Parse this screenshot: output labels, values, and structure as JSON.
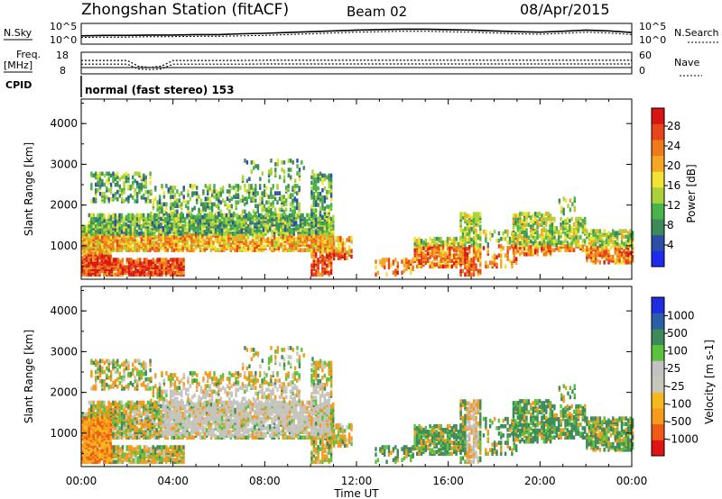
{
  "header": {
    "station": "Zhongshan Station (fitACF)",
    "beam": "Beam 02",
    "date": "08/Apr/2015",
    "cpid": "CPID",
    "mode": "normal (fast stereo) 153"
  },
  "time_axis": {
    "ticks": [
      "00:00",
      "04:00",
      "08:00",
      "12:00",
      "16:00",
      "20:00",
      "00:00"
    ],
    "label": "Time UT"
  },
  "colors": {
    "power": [
      "#1f2cf0",
      "#2c4fa8",
      "#3d8a5a",
      "#48b34a",
      "#a8d238",
      "#f2e233",
      "#f5a623",
      "#ef7a1a",
      "#e8461a",
      "#d81414"
    ],
    "velocity": [
      "#e01414",
      "#ef5a14",
      "#f59a1a",
      "#f5b81e",
      "#c8c6b8",
      "#c2c2c2",
      "#5cc23c",
      "#3d8a5a",
      "#2c5fa8",
      "#1f2ce0"
    ]
  },
  "chart_data": [
    {
      "type": "line",
      "name": "noise-panel",
      "left_label": "N.Sky",
      "right_label": "N.Search",
      "y_left_ticks": [
        "10^5",
        "10^0"
      ],
      "y_right_ticks": [
        "10^5",
        "10^0"
      ],
      "x": [
        0,
        1,
        2,
        3,
        4,
        5,
        6,
        7,
        8,
        9,
        10,
        11,
        12,
        13,
        14,
        15,
        16,
        17,
        18,
        19,
        20,
        21,
        22,
        23,
        24
      ],
      "series": [
        {
          "values": [
            2.0,
            2.1,
            2.1,
            2.2,
            2.2,
            2.3,
            2.3,
            2.5,
            2.6,
            2.8,
            3.0,
            3.2,
            3.4,
            3.5,
            3.6,
            3.6,
            3.5,
            3.4,
            3.2,
            3.0,
            2.9,
            3.1,
            3.4,
            3.2,
            2.8
          ]
        },
        {
          "values": [
            1.6,
            1.7,
            1.7,
            1.8,
            1.8,
            1.9,
            1.9,
            2.0,
            2.1,
            2.3,
            2.5,
            2.7,
            2.9,
            3.0,
            3.1,
            3.1,
            3.0,
            2.9,
            2.7,
            2.5,
            2.4,
            2.6,
            2.9,
            2.7,
            2.3
          ]
        }
      ]
    },
    {
      "type": "line",
      "name": "frequency-panel",
      "left_label": "Freq.",
      "left_unit": "[MHz]",
      "right_label": "Nave",
      "y_left_ticks": [
        "18",
        "8"
      ],
      "y_right_ticks": [
        "60",
        "0"
      ],
      "x": [
        0,
        1,
        2,
        2.5,
        3,
        3.5,
        4,
        5,
        6,
        7,
        8,
        9,
        10,
        11,
        12,
        13,
        14,
        15,
        16,
        17,
        18,
        19,
        20,
        21,
        22,
        23,
        24
      ],
      "series": [
        {
          "values": [
            12.5,
            12.5,
            12.5,
            10.2,
            10.0,
            10.3,
            12.5,
            12.5,
            12.5,
            12.5,
            12.6,
            12.6,
            12.6,
            12.6,
            12.6,
            12.6,
            12.6,
            12.6,
            12.6,
            12.6,
            12.6,
            12.6,
            12.6,
            12.6,
            12.6,
            12.6,
            12.6
          ]
        },
        {
          "values": [
            14.2,
            14.2,
            14.2,
            11.5,
            11.0,
            11.6,
            14.2,
            14.2,
            14.2,
            14.2,
            14.3,
            14.3,
            14.3,
            14.3,
            14.3,
            14.3,
            14.3,
            14.3,
            14.3,
            14.3,
            14.3,
            14.3,
            14.3,
            14.3,
            14.3,
            14.3,
            14.3
          ]
        }
      ]
    },
    {
      "type": "heatmap",
      "name": "power-panel",
      "ylabel": "Slant Range [km]",
      "y_ticks": [
        "1000",
        "2000",
        "3000",
        "4000"
      ],
      "ylim": [
        180,
        4600
      ],
      "colorbar": {
        "label": "Power [dB]",
        "ticks": [
          "4",
          "8",
          "12",
          "16",
          "20",
          "24",
          "28"
        ],
        "range": [
          0,
          30
        ]
      }
    },
    {
      "type": "heatmap",
      "name": "velocity-panel",
      "ylabel": "Slant Range [km]",
      "y_ticks": [
        "1000",
        "2000",
        "3000",
        "4000"
      ],
      "ylim": [
        180,
        4600
      ],
      "colorbar": {
        "label": "Velocity [m s-1]",
        "ticks": [
          "1000",
          "500",
          "100",
          "25",
          "-25",
          "-100",
          "-500",
          "-1000"
        ],
        "range": [
          -1200,
          1200
        ]
      }
    }
  ]
}
